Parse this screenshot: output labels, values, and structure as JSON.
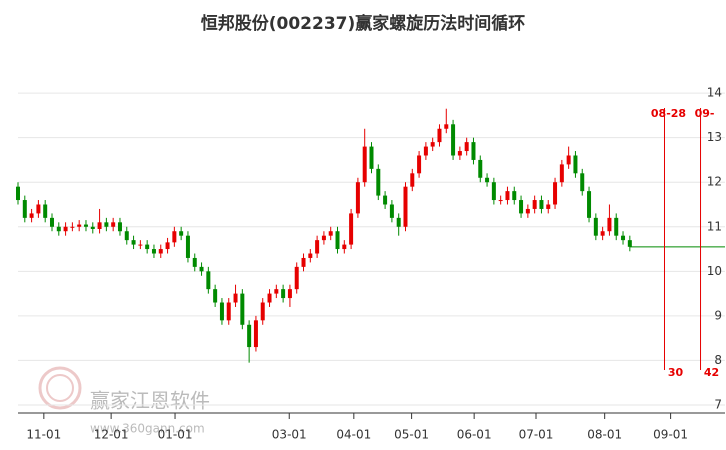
{
  "chart_data": {
    "type": "candlestick",
    "title": "恒邦股份(002237)赢家螺旋历法时间循环",
    "up_color": "#e60000",
    "down_color": "#008a00",
    "open": [
      11.9,
      11.6,
      11.2,
      11.3,
      11.5,
      11.2,
      11.0,
      10.9,
      11.0,
      11.0,
      11.05,
      11.0,
      10.95,
      11.1,
      11.0,
      11.1,
      10.9,
      10.7,
      10.6,
      10.6,
      10.5,
      10.4,
      10.5,
      10.65,
      10.9,
      10.8,
      10.3,
      10.1,
      10.0,
      9.6,
      9.3,
      8.9,
      9.3,
      9.5,
      8.8,
      8.3,
      8.9,
      9.3,
      9.5,
      9.6,
      9.4,
      9.6,
      10.1,
      10.3,
      10.4,
      10.7,
      10.8,
      10.9,
      10.5,
      10.6,
      11.3,
      12.0,
      12.8,
      12.3,
      11.7,
      11.5,
      11.2,
      11.0,
      11.9,
      12.2,
      12.6,
      12.8,
      12.9,
      13.2,
      13.3,
      12.6,
      12.7,
      12.9,
      12.5,
      12.1,
      12.0,
      11.6,
      11.6,
      11.8,
      11.6,
      11.3,
      11.4,
      11.6,
      11.4,
      11.5,
      12.0,
      12.4,
      12.6,
      12.2,
      11.8,
      11.2,
      10.8,
      10.9,
      11.2,
      10.8,
      10.7
    ],
    "high": [
      12.0,
      11.7,
      11.4,
      11.6,
      11.6,
      11.3,
      11.1,
      11.1,
      11.1,
      11.15,
      11.15,
      11.1,
      11.4,
      11.2,
      11.2,
      11.2,
      11.0,
      10.8,
      10.7,
      10.7,
      10.6,
      10.6,
      10.75,
      11.0,
      11.0,
      10.9,
      10.4,
      10.2,
      10.1,
      9.7,
      9.4,
      9.4,
      9.7,
      9.6,
      8.9,
      9.0,
      9.4,
      9.6,
      9.7,
      9.7,
      9.7,
      10.2,
      10.4,
      10.5,
      10.8,
      10.9,
      11.0,
      11.0,
      10.7,
      11.4,
      12.1,
      13.2,
      12.9,
      12.4,
      11.8,
      11.6,
      11.3,
      12.0,
      12.3,
      12.7,
      12.9,
      13.0,
      13.3,
      13.65,
      13.4,
      12.8,
      13.0,
      13.0,
      12.6,
      12.2,
      12.1,
      11.7,
      11.9,
      11.9,
      11.7,
      11.5,
      11.7,
      11.7,
      11.6,
      12.1,
      12.5,
      12.8,
      12.7,
      12.3,
      11.9,
      11.3,
      11.0,
      11.5,
      11.3,
      10.9,
      10.8
    ],
    "low": [
      11.5,
      11.1,
      11.1,
      11.2,
      11.1,
      10.9,
      10.8,
      10.8,
      10.9,
      10.9,
      10.9,
      10.85,
      10.85,
      10.9,
      10.9,
      10.8,
      10.6,
      10.5,
      10.5,
      10.4,
      10.3,
      10.3,
      10.4,
      10.55,
      10.7,
      10.2,
      10.0,
      9.9,
      9.5,
      9.2,
      8.8,
      8.8,
      9.2,
      8.7,
      7.95,
      8.2,
      8.8,
      9.2,
      9.4,
      9.3,
      9.2,
      9.5,
      10.0,
      10.2,
      10.3,
      10.6,
      10.7,
      10.4,
      10.4,
      10.5,
      11.2,
      11.9,
      12.2,
      11.6,
      11.4,
      11.1,
      10.8,
      10.9,
      11.8,
      12.1,
      12.5,
      12.7,
      12.8,
      13.1,
      12.5,
      12.5,
      12.6,
      12.4,
      12.0,
      11.9,
      11.5,
      11.5,
      11.5,
      11.5,
      11.2,
      11.2,
      11.3,
      11.3,
      11.3,
      11.4,
      11.9,
      12.3,
      12.1,
      11.7,
      11.1,
      10.7,
      10.7,
      10.8,
      10.7,
      10.6,
      10.45
    ],
    "close": [
      11.6,
      11.2,
      11.3,
      11.5,
      11.2,
      11.0,
      10.9,
      11.0,
      11.0,
      11.05,
      11.0,
      10.95,
      11.1,
      11.0,
      11.1,
      10.9,
      10.7,
      10.6,
      10.6,
      10.5,
      10.4,
      10.5,
      10.65,
      10.9,
      10.8,
      10.3,
      10.1,
      10.0,
      9.6,
      9.3,
      8.9,
      9.3,
      9.5,
      8.8,
      8.3,
      8.9,
      9.3,
      9.5,
      9.6,
      9.4,
      9.6,
      10.1,
      10.3,
      10.4,
      10.7,
      10.8,
      10.9,
      10.5,
      10.6,
      11.3,
      12.0,
      12.8,
      12.3,
      11.7,
      11.5,
      11.2,
      11.0,
      11.9,
      12.2,
      12.6,
      12.8,
      12.9,
      13.2,
      13.3,
      12.6,
      12.7,
      12.9,
      12.5,
      12.1,
      12.0,
      11.6,
      11.6,
      11.8,
      11.6,
      11.3,
      11.4,
      11.6,
      11.4,
      11.5,
      12.0,
      12.4,
      12.6,
      12.2,
      11.8,
      11.2,
      10.8,
      10.9,
      11.2,
      10.8,
      10.7,
      10.55
    ],
    "xlim": [
      0,
      104
    ],
    "xticks": [
      {
        "value": 3.8,
        "label": "11-01"
      },
      {
        "value": 13.7,
        "label": "12-01"
      },
      {
        "value": 23.1,
        "label": "01-01"
      },
      {
        "value": 39.9,
        "label": "03-01"
      },
      {
        "value": 49.4,
        "label": "04-01"
      },
      {
        "value": 57.9,
        "label": "05-01"
      },
      {
        "value": 67.1,
        "label": "06-01"
      },
      {
        "value": 76.2,
        "label": "07-01"
      },
      {
        "value": 86.3,
        "label": "08-01"
      },
      {
        "value": 96,
        "label": "09-01"
      }
    ],
    "ylim": [
      6.82,
      15.08
    ],
    "yticks": [
      7,
      8,
      9,
      10,
      11,
      12,
      13,
      14
    ],
    "grid": true,
    "reference_line": {
      "value": 10.55,
      "from": 90,
      "to": 104,
      "color": "#008a00"
    },
    "cycle_lines": [
      {
        "x": 95.1,
        "date_label": "08-28",
        "count": 30,
        "color": "#e60000"
      },
      {
        "x": 100.4,
        "date_label": "09-",
        "count": 42,
        "color": "#e60000"
      }
    ],
    "watermark": {
      "name": "赢家江恩软件",
      "url": "www.360gann.com"
    }
  }
}
